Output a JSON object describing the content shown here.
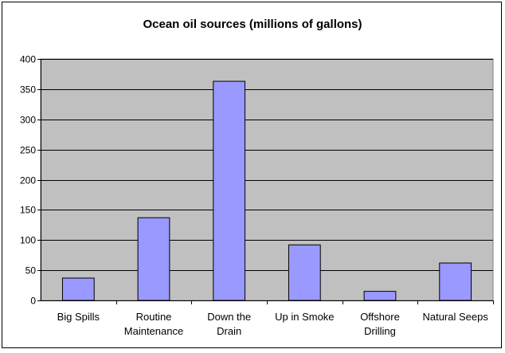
{
  "chart_data": {
    "type": "bar",
    "title": "Ocean oil sources (millions of gallons)",
    "xlabel": "",
    "ylabel": "",
    "categories": [
      "Big Spills",
      "Routine Maintenance",
      "Down the Drain",
      "Up in Smoke",
      "Offshore Drilling",
      "Natural Seeps"
    ],
    "category_lines": [
      [
        "Big Spills"
      ],
      [
        "Routine",
        "Maintenance"
      ],
      [
        "Down the",
        "Drain"
      ],
      [
        "Up in Smoke"
      ],
      [
        "Offshore",
        "Drilling"
      ],
      [
        "Natural Seeps"
      ]
    ],
    "values": [
      37,
      137,
      363,
      92,
      15,
      62
    ],
    "ylim": [
      0,
      400
    ],
    "yticks": [
      0,
      50,
      100,
      150,
      200,
      250,
      300,
      350,
      400
    ],
    "grid": true,
    "legend": "none",
    "colors": {
      "bar_fill": "#9999ff",
      "plot_background": "#c0c0c0",
      "gridline": "#000000"
    }
  }
}
